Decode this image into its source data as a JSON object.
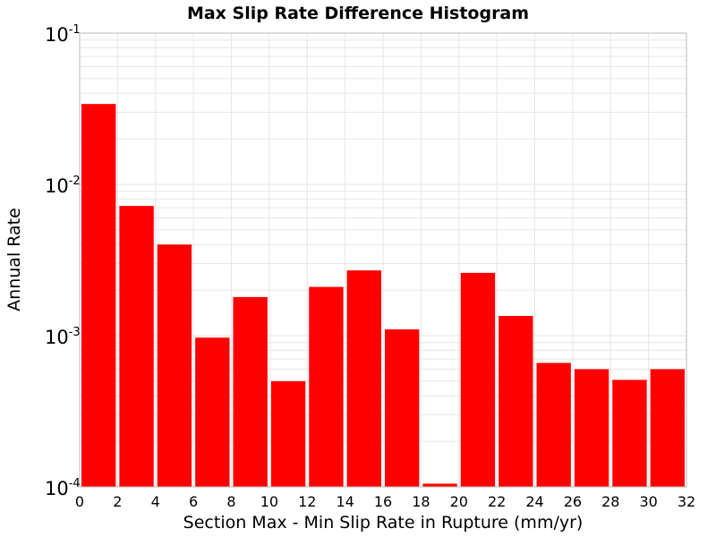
{
  "chart_data": {
    "type": "bar",
    "title": "Max Slip Rate Difference Histogram",
    "xlabel": "Section Max - Min Slip Rate in Rupture (mm/yr)",
    "ylabel": "Annual Rate",
    "xlim": [
      0,
      32
    ],
    "ylim": [
      0.0001,
      0.1
    ],
    "yscale": "log",
    "bar_color": "#ff0000",
    "grid": true,
    "x_ticks": [
      0,
      2,
      4,
      6,
      8,
      10,
      12,
      14,
      16,
      18,
      20,
      22,
      24,
      26,
      28,
      30,
      32
    ],
    "y_ticks": [
      {
        "base": "10",
        "exp": "-4",
        "value": 0.0001
      },
      {
        "base": "10",
        "exp": "-3",
        "value": 0.001
      },
      {
        "base": "10",
        "exp": "-2",
        "value": 0.01
      },
      {
        "base": "10",
        "exp": "-1",
        "value": 0.1
      }
    ],
    "bin_width": 2,
    "bins": [
      {
        "x_start": 0,
        "value": 0.034
      },
      {
        "x_start": 2,
        "value": 0.0072
      },
      {
        "x_start": 4,
        "value": 0.004
      },
      {
        "x_start": 6,
        "value": 0.00097
      },
      {
        "x_start": 8,
        "value": 0.0018
      },
      {
        "x_start": 10,
        "value": 0.0005
      },
      {
        "x_start": 12,
        "value": 0.0021
      },
      {
        "x_start": 14,
        "value": 0.0027
      },
      {
        "x_start": 16,
        "value": 0.0011
      },
      {
        "x_start": 18,
        "value": 0.000105
      },
      {
        "x_start": 20,
        "value": 0.0026
      },
      {
        "x_start": 22,
        "value": 0.00135
      },
      {
        "x_start": 24,
        "value": 0.00066
      },
      {
        "x_start": 26,
        "value": 0.0006
      },
      {
        "x_start": 28,
        "value": 0.00051
      },
      {
        "x_start": 30,
        "value": 0.0006
      }
    ]
  }
}
